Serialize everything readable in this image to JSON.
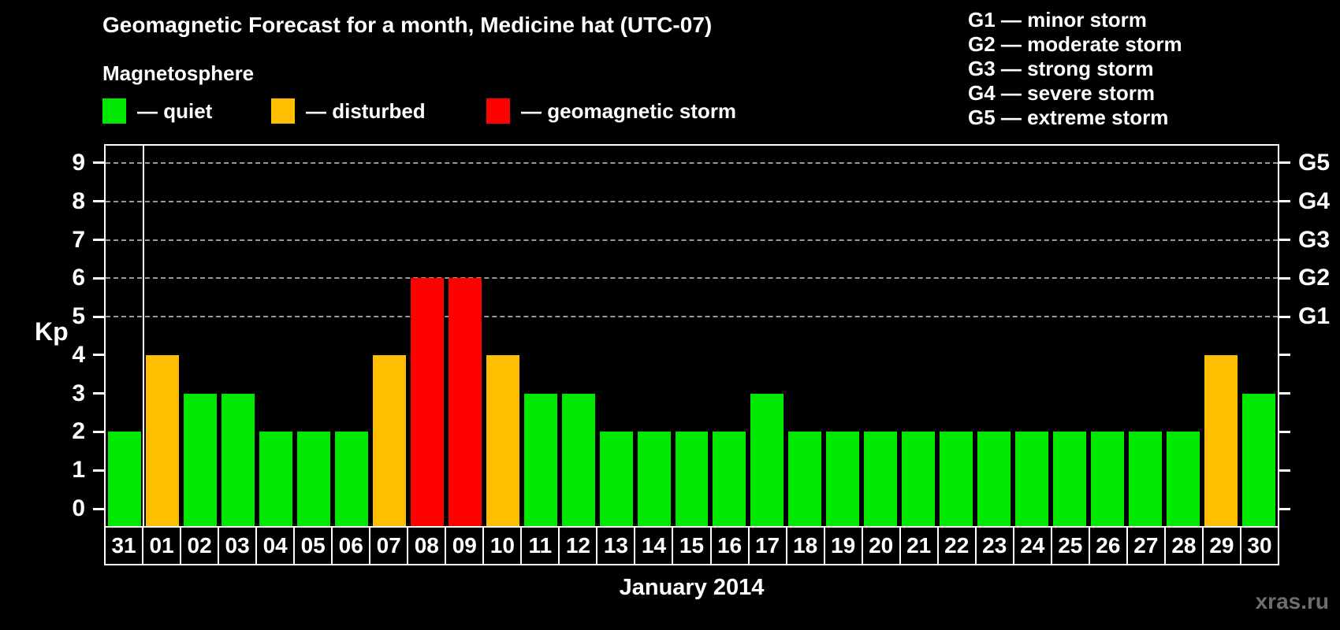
{
  "header": {
    "title": "Geomagnetic Forecast for a month, Medicine hat (UTC-07)",
    "subtitle": "Magnetosphere",
    "legend_items": [
      {
        "key": "quiet",
        "color": "#00e800",
        "label": "— quiet"
      },
      {
        "key": "disturbed",
        "color": "#ffbf00",
        "label": "— disturbed"
      },
      {
        "key": "storm",
        "color": "#ff0000",
        "label": "— geomagnetic storm"
      }
    ],
    "storm_scale": [
      "G1 — minor storm",
      "G2 — moderate storm",
      "G3 — strong storm",
      "G4 — severe storm",
      "G5 — extreme storm"
    ]
  },
  "chart_data": {
    "type": "bar",
    "title": "Geomagnetic Forecast for a month, Medicine hat (UTC-07)",
    "ylabel": "Kp",
    "xlabel": "January 2014",
    "ylim": [
      0,
      9
    ],
    "y_ticks": [
      0,
      1,
      2,
      3,
      4,
      5,
      6,
      7,
      8,
      9
    ],
    "gridlines_at": [
      5,
      6,
      7,
      8,
      9
    ],
    "grid_style": "dashed horizontal lines at storm levels G1–G5 (Kp 5–9)",
    "legend_position": "top-left",
    "categories": [
      "31",
      "01",
      "02",
      "03",
      "04",
      "05",
      "06",
      "07",
      "08",
      "09",
      "10",
      "11",
      "12",
      "13",
      "14",
      "15",
      "16",
      "17",
      "18",
      "19",
      "20",
      "21",
      "22",
      "23",
      "24",
      "25",
      "26",
      "27",
      "28",
      "29",
      "30"
    ],
    "values": [
      2,
      4,
      3,
      3,
      2,
      2,
      2,
      4,
      6,
      6,
      4,
      3,
      3,
      2,
      2,
      2,
      2,
      3,
      2,
      2,
      2,
      2,
      2,
      2,
      2,
      2,
      2,
      2,
      2,
      4,
      3
    ],
    "statuses": [
      "quiet",
      "disturbed",
      "quiet",
      "quiet",
      "quiet",
      "quiet",
      "quiet",
      "disturbed",
      "storm",
      "storm",
      "disturbed",
      "quiet",
      "quiet",
      "quiet",
      "quiet",
      "quiet",
      "quiet",
      "quiet",
      "quiet",
      "quiet",
      "quiet",
      "quiet",
      "quiet",
      "quiet",
      "quiet",
      "quiet",
      "quiet",
      "quiet",
      "quiet",
      "disturbed",
      "quiet"
    ],
    "month_separator_after_category": "31",
    "right_axis_labels": [
      {
        "kp": 5,
        "label": "G1"
      },
      {
        "kp": 6,
        "label": "G2"
      },
      {
        "kp": 7,
        "label": "G3"
      },
      {
        "kp": 8,
        "label": "G4"
      },
      {
        "kp": 9,
        "label": "G5"
      }
    ]
  },
  "footer": {
    "x_axis_title": "January 2014",
    "watermark": "xras.ru"
  }
}
